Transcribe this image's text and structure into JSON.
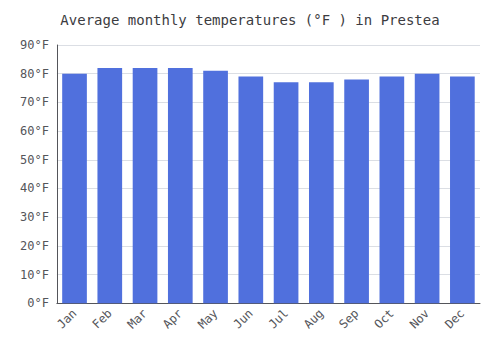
{
  "chart_data": {
    "type": "bar",
    "title": "Average monthly temperatures (°F ) in Prestea",
    "categories": [
      "Jan",
      "Feb",
      "Mar",
      "Apr",
      "May",
      "Jun",
      "Jul",
      "Aug",
      "Sep",
      "Oct",
      "Nov",
      "Dec"
    ],
    "values": [
      80,
      82,
      82,
      82,
      81,
      79,
      77,
      77,
      78,
      79,
      80,
      79
    ],
    "ylim": [
      0,
      90
    ],
    "yticks": [
      {
        "value": 0,
        "label": "0°F"
      },
      {
        "value": 10,
        "label": "10°F"
      },
      {
        "value": 20,
        "label": "20°F"
      },
      {
        "value": 30,
        "label": "30°F"
      },
      {
        "value": 40,
        "label": "40°F"
      },
      {
        "value": 50,
        "label": "50°F"
      },
      {
        "value": 60,
        "label": "60°F"
      },
      {
        "value": 70,
        "label": "70°F"
      },
      {
        "value": 80,
        "label": "80°F"
      },
      {
        "value": 90,
        "label": "90°F"
      }
    ],
    "grid": true
  }
}
